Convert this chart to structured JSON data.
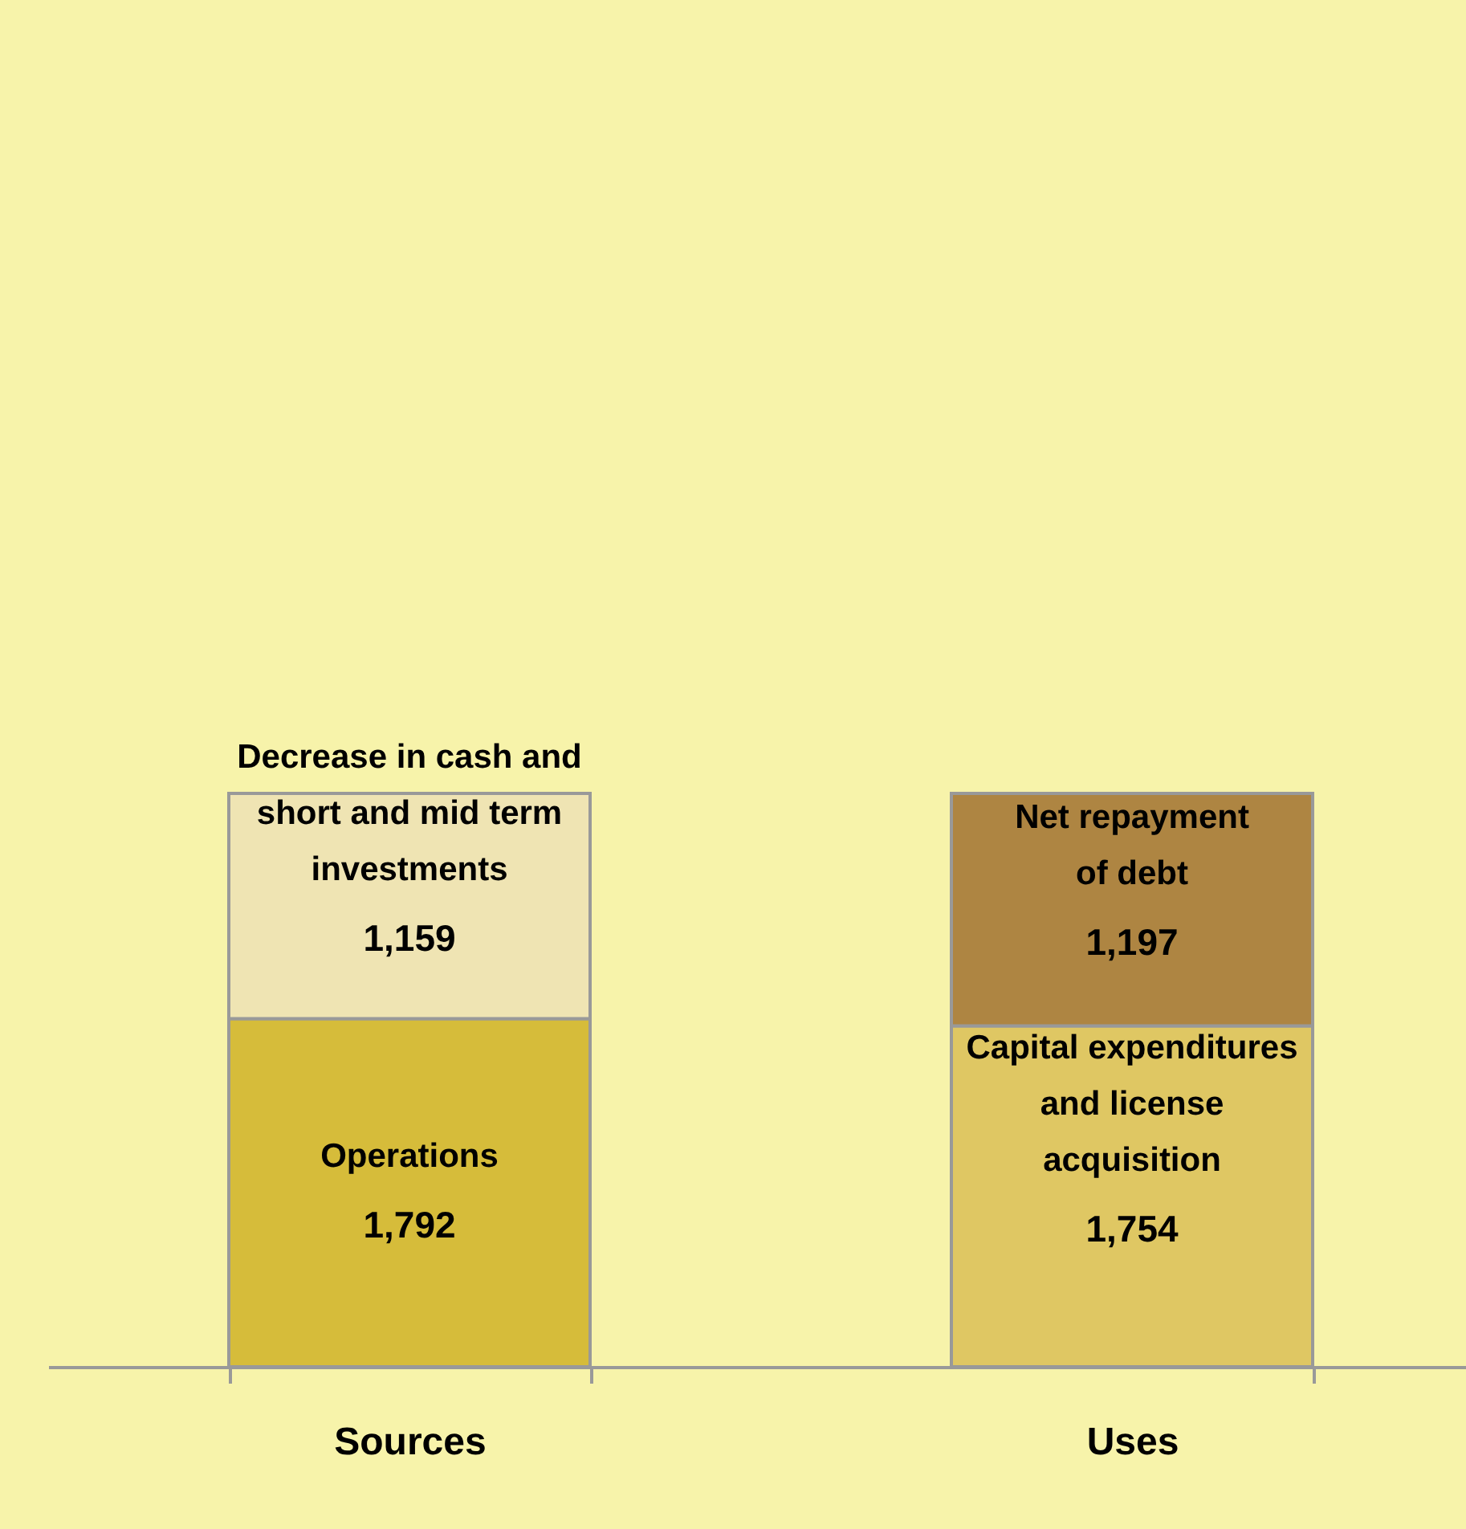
{
  "chart_data": {
    "type": "bar",
    "stacked": true,
    "categories": [
      "Sources",
      "Uses"
    ],
    "series": [
      {
        "name": "Operations",
        "color": "#d6bc3a",
        "values": [
          1792,
          null
        ],
        "value_labels": [
          "1,792",
          null
        ]
      },
      {
        "name": "Capital expenditures and license acquisition",
        "color": "#dfc763",
        "values": [
          null,
          1754
        ],
        "value_labels": [
          null,
          "1,754"
        ]
      },
      {
        "name": "Decrease in cash and short and mid term investments",
        "color": "#efe4b3",
        "values": [
          1159,
          null
        ],
        "value_labels": [
          "1,159",
          null
        ]
      },
      {
        "name": "Net repayment of debt",
        "color": "#ae8542",
        "values": [
          null,
          1197
        ],
        "value_labels": [
          null,
          "1,197"
        ]
      }
    ],
    "tick_labels": "x",
    "grid": false
  }
}
